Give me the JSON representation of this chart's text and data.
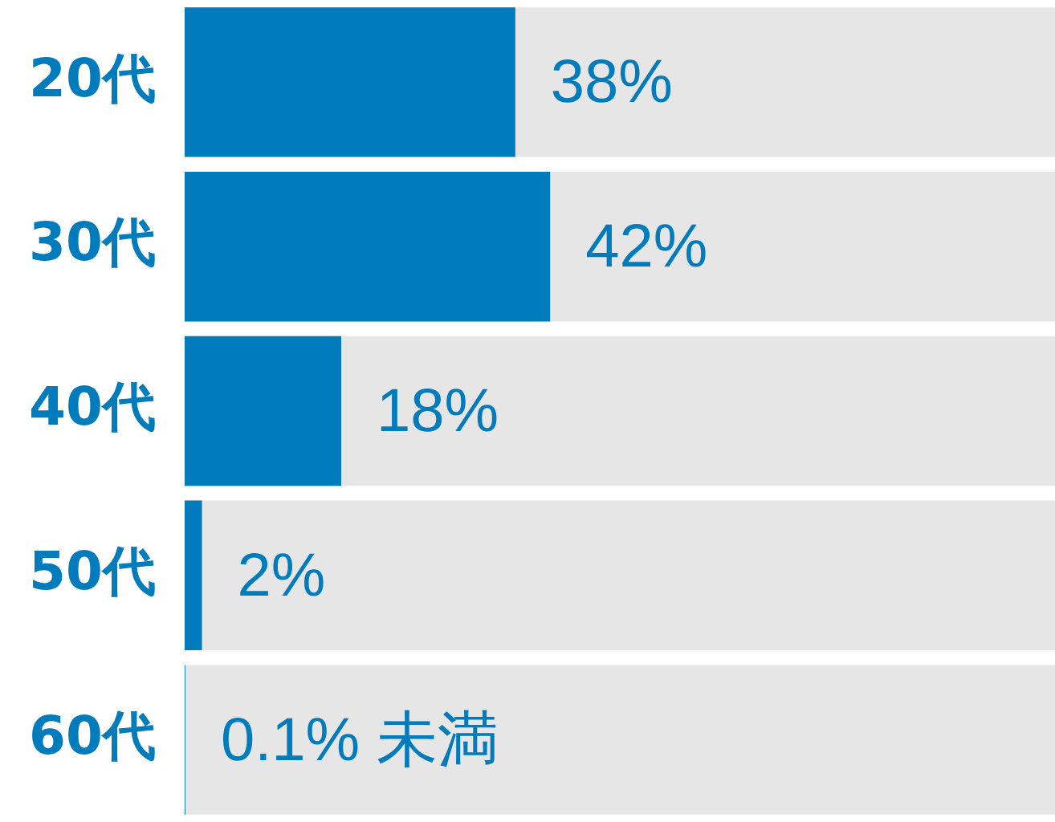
{
  "chart_data": {
    "type": "bar",
    "orientation": "horizontal",
    "categories": [
      "20代",
      "30代",
      "40代",
      "50代",
      "60代"
    ],
    "values": [
      38,
      42,
      18,
      2,
      0.1
    ],
    "value_labels": [
      "38%",
      "42%",
      "18%",
      "2%",
      "0.1% 未満"
    ],
    "color": "#007bbb",
    "xlim": [
      0,
      100
    ],
    "tick_labels": "y",
    "legend": false
  }
}
